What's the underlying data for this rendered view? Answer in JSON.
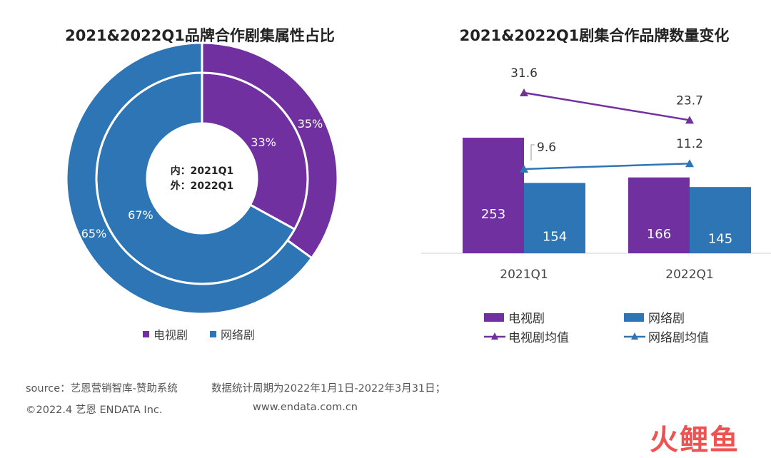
{
  "chart_data": [
    {
      "type": "pie",
      "title": "2021&2022Q1品牌合作剧集属性占比",
      "center_label": [
        "内：2021Q1",
        "外：2022Q1"
      ],
      "categories": [
        "电视剧",
        "网络剧"
      ],
      "series": [
        {
          "name": "2021Q1",
          "ring": "inner",
          "values": [
            33,
            67
          ],
          "labels": [
            "33%",
            "67%"
          ]
        },
        {
          "name": "2022Q1",
          "ring": "outer",
          "values": [
            35,
            65
          ],
          "labels": [
            "35%",
            "65%"
          ]
        }
      ],
      "legend": [
        "电视剧",
        "网络剧"
      ],
      "legend_position": "bottom"
    },
    {
      "type": "bar",
      "title": "2021&2022Q1剧集合作品牌数量变化",
      "categories": [
        "2021Q1",
        "2022Q1"
      ],
      "series": [
        {
          "name": "电视剧",
          "kind": "bar",
          "values": [
            253,
            166
          ]
        },
        {
          "name": "网络剧",
          "kind": "bar",
          "values": [
            154,
            145
          ]
        },
        {
          "name": "电视剧均值",
          "kind": "line",
          "values": [
            31.6,
            23.7
          ]
        },
        {
          "name": "网络剧均值",
          "kind": "line",
          "values": [
            9.6,
            11.2
          ]
        }
      ],
      "legend": [
        "电视剧",
        "网络剧",
        "电视剧均值",
        "网络剧均值"
      ],
      "legend_position": "bottom",
      "grid": false
    }
  ],
  "colors": {
    "tv": "#7030a0",
    "web": "#2e75b6"
  },
  "footer": {
    "source": "source：艺恩营销智库-赞助系统",
    "period": "数据统计周期为2022年1月1日-2022年3月31日；",
    "copyright": "©2022.4 艺恩 ENDATA Inc.",
    "website": "www.endata.com.cn"
  },
  "watermark": "火鲤鱼"
}
